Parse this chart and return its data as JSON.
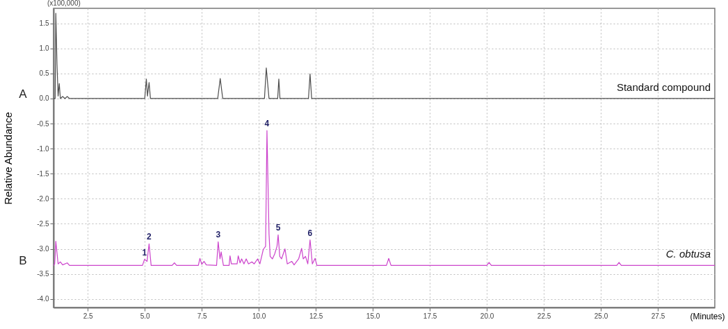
{
  "chart_data": {
    "type": "line",
    "ylabel": "Relative Abundance",
    "xlabel": "(Minutes)",
    "xlim": [
      1.0,
      30.0
    ],
    "xticks": [
      2.5,
      {
        "value": 5,
        "label": "5.0"
      },
      7.5,
      {
        "value": 10,
        "label": "10.0"
      },
      12.5,
      {
        "value": 15,
        "label": "15.0"
      },
      17.5,
      {
        "value": 20,
        "label": "20.0"
      },
      22.5,
      {
        "value": 25,
        "label": "25.0"
      },
      27.5
    ],
    "ylim": [
      -4.17,
      1.8
    ],
    "yticks": [
      {
        "value": -4,
        "label": "-4.0"
      },
      {
        "value": -3.5,
        "label": "-3.5"
      },
      {
        "value": -3,
        "label": "-3.0"
      },
      {
        "value": -2.5,
        "label": "-2.5"
      },
      {
        "value": -2,
        "label": "-2.0"
      },
      {
        "value": -1.5,
        "label": "-1.5"
      },
      {
        "value": -1,
        "label": "-1.0"
      },
      {
        "value": -0.5,
        "label": "-0.5"
      },
      {
        "value": 0,
        "label": "0.0"
      },
      0.5,
      {
        "value": 1,
        "label": "1.0"
      },
      1.5
    ],
    "grid": true,
    "marker": "none",
    "line_style": "solid",
    "series": [
      {
        "name": "Standard compound",
        "color": "#4d4d4d",
        "x": [
          1.0,
          1.07,
          1.1,
          1.15,
          1.2,
          1.25,
          1.3,
          1.4,
          1.5,
          1.6,
          1.7,
          5.0,
          5.07,
          5.12,
          5.19,
          5.25,
          8.2,
          8.31,
          8.42,
          10.25,
          10.33,
          10.45,
          10.83,
          10.88,
          10.93,
          12.18,
          12.25,
          12.32,
          30.0
        ],
        "values": [
          0,
          0,
          1.7,
          0.7,
          0.05,
          0.3,
          0,
          0.04,
          0,
          0.04,
          0,
          0,
          0.39,
          0.05,
          0.32,
          0,
          0,
          0.4,
          0,
          0,
          0.61,
          0,
          0,
          0.39,
          0,
          0,
          0.49,
          0,
          0
        ]
      },
      {
        "name": "C. obtusa",
        "color": "#cc44cc",
        "x": [
          1.0,
          1.05,
          1.1,
          1.2,
          1.3,
          1.4,
          1.6,
          1.7,
          4.9,
          4.99,
          5.1,
          5.19,
          5.28,
          6.2,
          6.3,
          6.4,
          7.35,
          7.42,
          7.5,
          7.6,
          7.7,
          8.15,
          8.22,
          8.3,
          8.35,
          8.45,
          8.7,
          8.74,
          8.8,
          9.05,
          9.1,
          9.18,
          9.25,
          9.35,
          9.45,
          9.55,
          9.7,
          9.8,
          9.95,
          10.05,
          10.2,
          10.3,
          10.36,
          10.45,
          10.5,
          10.6,
          10.7,
          10.8,
          10.85,
          10.92,
          11.0,
          11.15,
          11.25,
          11.45,
          11.55,
          11.75,
          11.88,
          11.95,
          12.05,
          12.15,
          12.25,
          12.35,
          12.47,
          12.55,
          15.6,
          15.7,
          15.8,
          20.0,
          20.1,
          20.2,
          25.7,
          25.8,
          25.9,
          30.0
        ],
        "values": [
          -3.33,
          -3.3,
          -2.85,
          -3.3,
          -3.26,
          -3.32,
          -3.28,
          -3.33,
          -3.33,
          -3.21,
          -3.25,
          -2.9,
          -3.33,
          -3.33,
          -3.28,
          -3.33,
          -3.33,
          -3.19,
          -3.31,
          -3.25,
          -3.32,
          -3.33,
          -2.86,
          -3.2,
          -3.06,
          -3.33,
          -3.33,
          -3.14,
          -3.3,
          -3.3,
          -3.14,
          -3.28,
          -3.2,
          -3.3,
          -3.2,
          -3.3,
          -3.26,
          -3.3,
          -3.2,
          -3.3,
          -3.01,
          -2.95,
          -0.64,
          -2.7,
          -3.15,
          -3.2,
          -3.1,
          -2.95,
          -2.72,
          -3.15,
          -3.2,
          -3.0,
          -3.3,
          -3.25,
          -3.32,
          -3.2,
          -2.99,
          -3.2,
          -3.15,
          -3.3,
          -2.82,
          -3.3,
          -3.19,
          -3.33,
          -3.33,
          -3.19,
          -3.33,
          -3.33,
          -3.27,
          -3.33,
          -3.33,
          -3.27,
          -3.33,
          -3.33
        ]
      }
    ],
    "annotations": [
      "(x100,000)",
      "A",
      "B",
      {
        "text": "1",
        "x": 4.99,
        "y": -3.21
      },
      {
        "text": "2",
        "x": 5.19,
        "y": -2.9
      },
      {
        "text": "3",
        "x": 8.22,
        "y": -2.86
      },
      {
        "text": "4",
        "x": 10.36,
        "y": -0.64
      },
      {
        "text": "5",
        "x": 10.85,
        "y": -2.72
      },
      {
        "text": "6",
        "x": 12.25,
        "y": -2.82
      }
    ]
  }
}
